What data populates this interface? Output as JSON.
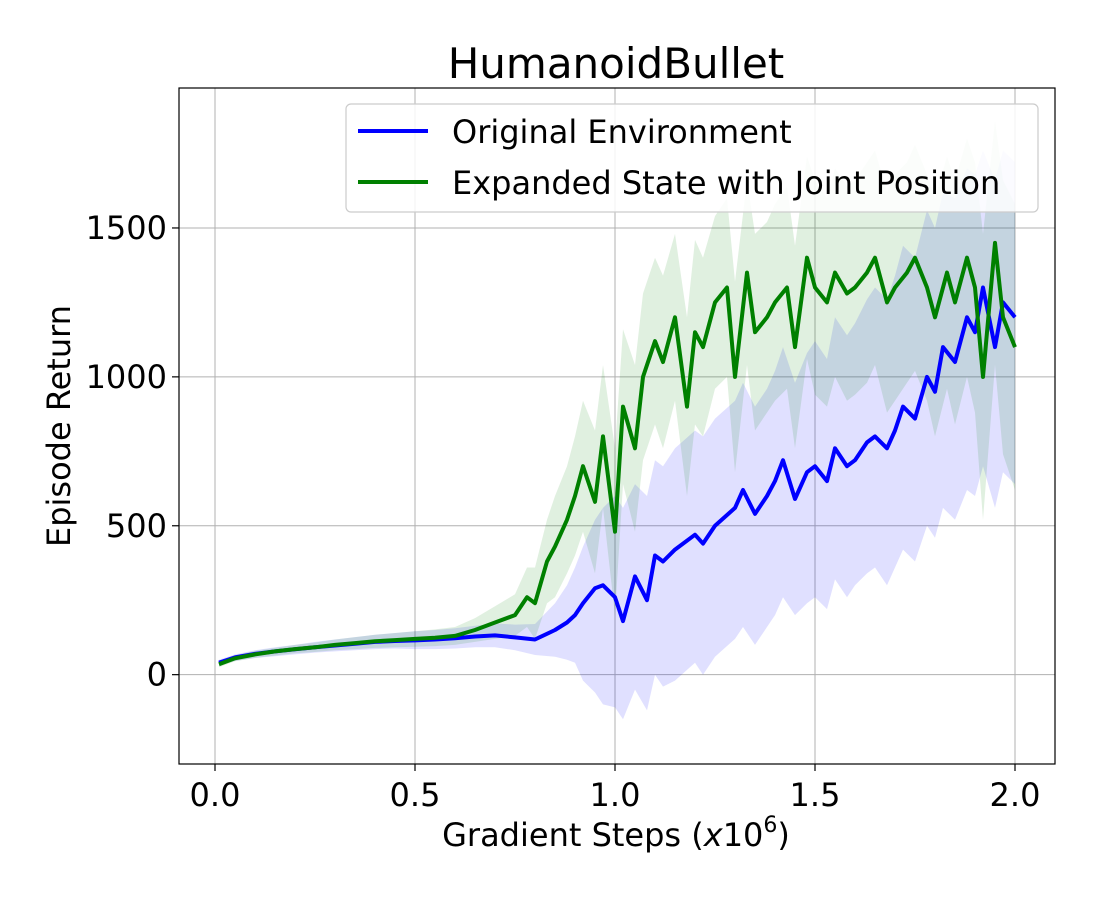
{
  "chart_data": {
    "type": "line",
    "title": "HumanoidBullet",
    "xlabel": "Gradient Steps (x10^6)",
    "xlabel_prefix": "Gradient Steps (",
    "xlabel_var": "x",
    "xlabel_base": "10",
    "xlabel_exp": "6",
    "xlabel_suffix": ")",
    "ylabel": "Episode Return",
    "xlim": [
      -0.09,
      2.1
    ],
    "ylim": [
      -300,
      1970
    ],
    "xticks": [
      0.0,
      0.5,
      1.0,
      1.5,
      2.0
    ],
    "xtick_labels": [
      "0.0",
      "0.5",
      "1.0",
      "1.5",
      "2.0"
    ],
    "yticks": [
      0,
      500,
      1000,
      1500
    ],
    "ytick_labels": [
      "0",
      "500",
      "1000",
      "1500"
    ],
    "grid": true,
    "legend_position": "top-right",
    "series": [
      {
        "name": "Original Environment",
        "color": "#0000ff",
        "band_color": "#0000ff",
        "x": [
          0.01,
          0.05,
          0.1,
          0.15,
          0.2,
          0.25,
          0.3,
          0.35,
          0.4,
          0.45,
          0.5,
          0.55,
          0.6,
          0.65,
          0.7,
          0.75,
          0.8,
          0.85,
          0.88,
          0.9,
          0.92,
          0.95,
          0.97,
          1.0,
          1.02,
          1.05,
          1.08,
          1.1,
          1.12,
          1.15,
          1.2,
          1.22,
          1.25,
          1.3,
          1.32,
          1.35,
          1.38,
          1.4,
          1.42,
          1.45,
          1.48,
          1.5,
          1.53,
          1.55,
          1.58,
          1.6,
          1.63,
          1.65,
          1.68,
          1.7,
          1.72,
          1.75,
          1.78,
          1.8,
          1.82,
          1.85,
          1.88,
          1.9,
          1.92,
          1.95,
          1.97,
          2.0
        ],
        "y": [
          40,
          58,
          70,
          78,
          85,
          92,
          98,
          104,
          110,
          113,
          115,
          118,
          122,
          128,
          132,
          125,
          118,
          150,
          175,
          200,
          240,
          290,
          300,
          260,
          180,
          330,
          250,
          400,
          380,
          420,
          470,
          440,
          500,
          560,
          620,
          540,
          600,
          650,
          720,
          590,
          680,
          700,
          650,
          760,
          700,
          720,
          780,
          800,
          760,
          820,
          900,
          860,
          1000,
          950,
          1100,
          1050,
          1200,
          1150,
          1300,
          1100,
          1250,
          1200
        ],
        "upper": [
          50,
          68,
          82,
          92,
          100,
          110,
          118,
          126,
          134,
          140,
          146,
          150,
          156,
          164,
          172,
          168,
          170,
          240,
          300,
          360,
          430,
          520,
          560,
          600,
          560,
          640,
          600,
          720,
          700,
          760,
          820,
          800,
          860,
          920,
          980,
          900,
          960,
          1020,
          1100,
          980,
          1080,
          1120,
          1060,
          1200,
          1140,
          1180,
          1260,
          1300,
          1260,
          1340,
          1440,
          1400,
          1560,
          1500,
          1620,
          1600,
          1700,
          1680,
          1760,
          1660,
          1760,
          1720
        ],
        "lower": [
          30,
          46,
          56,
          62,
          68,
          74,
          78,
          82,
          86,
          88,
          86,
          86,
          88,
          92,
          92,
          82,
          66,
          60,
          50,
          40,
          -20,
          -60,
          -100,
          -110,
          -150,
          -50,
          -120,
          0,
          -40,
          -20,
          40,
          0,
          60,
          120,
          160,
          100,
          160,
          200,
          260,
          200,
          240,
          260,
          220,
          320,
          260,
          300,
          340,
          360,
          300,
          360,
          420,
          380,
          500,
          460,
          560,
          520,
          620,
          600,
          700,
          560,
          680,
          640
        ]
      },
      {
        "name": "Expanded State with Joint Position",
        "color": "#008000",
        "band_color": "#008000",
        "x": [
          0.01,
          0.05,
          0.1,
          0.15,
          0.2,
          0.25,
          0.3,
          0.35,
          0.4,
          0.45,
          0.5,
          0.55,
          0.6,
          0.65,
          0.7,
          0.75,
          0.78,
          0.8,
          0.83,
          0.85,
          0.88,
          0.9,
          0.92,
          0.95,
          0.97,
          1.0,
          1.02,
          1.05,
          1.07,
          1.1,
          1.12,
          1.15,
          1.18,
          1.2,
          1.22,
          1.25,
          1.28,
          1.3,
          1.33,
          1.35,
          1.38,
          1.4,
          1.43,
          1.45,
          1.48,
          1.5,
          1.53,
          1.55,
          1.58,
          1.6,
          1.63,
          1.65,
          1.68,
          1.7,
          1.73,
          1.75,
          1.78,
          1.8,
          1.83,
          1.85,
          1.88,
          1.9,
          1.92,
          1.95,
          1.97,
          2.0
        ],
        "y": [
          35,
          55,
          68,
          78,
          86,
          92,
          100,
          106,
          112,
          116,
          120,
          124,
          130,
          150,
          175,
          200,
          260,
          240,
          380,
          430,
          520,
          600,
          700,
          580,
          800,
          480,
          900,
          760,
          1000,
          1120,
          1050,
          1200,
          900,
          1150,
          1100,
          1250,
          1300,
          1000,
          1350,
          1150,
          1200,
          1250,
          1300,
          1100,
          1400,
          1300,
          1250,
          1350,
          1280,
          1300,
          1350,
          1400,
          1250,
          1300,
          1350,
          1400,
          1300,
          1200,
          1350,
          1250,
          1400,
          1300,
          1000,
          1450,
          1200,
          1100
        ],
        "upper": [
          45,
          65,
          80,
          90,
          100,
          108,
          118,
          126,
          134,
          140,
          146,
          152,
          160,
          190,
          230,
          270,
          360,
          360,
          520,
          600,
          700,
          800,
          920,
          820,
          1040,
          760,
          1160,
          1040,
          1280,
          1400,
          1340,
          1480,
          1200,
          1460,
          1400,
          1540,
          1600,
          1320,
          1660,
          1480,
          1520,
          1580,
          1640,
          1440,
          1740,
          1660,
          1600,
          1700,
          1640,
          1660,
          1720,
          1760,
          1620,
          1680,
          1720,
          1780,
          1680,
          1600,
          1740,
          1660,
          1800,
          1720,
          1480,
          1860,
          1660,
          1580
        ],
        "lower": [
          25,
          45,
          56,
          64,
          72,
          76,
          82,
          86,
          90,
          92,
          94,
          96,
          100,
          110,
          120,
          130,
          160,
          120,
          240,
          260,
          340,
          400,
          480,
          340,
          560,
          200,
          640,
          480,
          720,
          840,
          760,
          920,
          600,
          840,
          800,
          960,
          1000,
          680,
          1040,
          820,
          880,
          920,
          960,
          760,
          1060,
          940,
          900,
          1000,
          920,
          940,
          980,
          1040,
          880,
          920,
          980,
          1020,
          920,
          800,
          960,
          840,
          1000,
          880,
          520,
          1040,
          740,
          620
        ]
      }
    ]
  }
}
